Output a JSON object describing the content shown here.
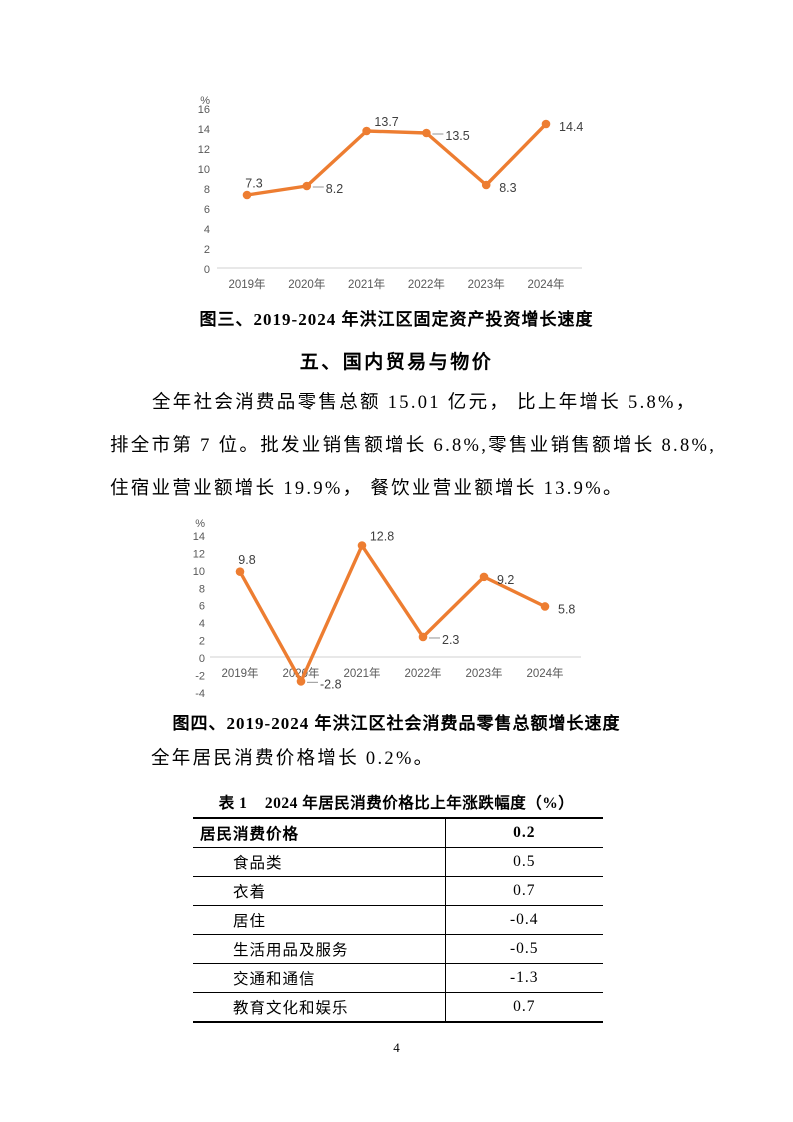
{
  "document": {
    "figure3_caption": "图三、2019-2024 年洪江区固定资产投资增长速度",
    "section_heading": "五、国内贸易与物价",
    "paragraph_lines": [
      "全年社会消费品零售总额 15.01 亿元， 比上年增长 5.8%，",
      "排全市第 7 位。批发业销售额增长 6.8%,零售业销售额增长 8.8%,",
      "住宿业营业额增长 19.9%， 餐饮业营业额增长 13.9%。"
    ],
    "figure4_caption": "图四、2019-2024 年洪江区社会消费品零售总额增长速度",
    "cpi_sentence": "全年居民消费价格增长 0.2%。",
    "page_number": "4"
  },
  "table1": {
    "title": "表 1    2024 年居民消费价格比上年涨跌幅度（%）",
    "header": {
      "label": "居民消费价格",
      "value": "0.2"
    },
    "rows": [
      {
        "label": "食品类",
        "value": "0.5"
      },
      {
        "label": "衣着",
        "value": "0.7"
      },
      {
        "label": "居住",
        "value": "-0.4"
      },
      {
        "label": "生活用品及服务",
        "value": "-0.5"
      },
      {
        "label": "交通和通信",
        "value": "-1.3"
      },
      {
        "label": "教育文化和娱乐",
        "value": "0.7"
      }
    ]
  },
  "chart_data": [
    {
      "type": "line",
      "title": "图三、2019-2024年洪江区固定资产投资增长速度",
      "categories": [
        "2019年",
        "2020年",
        "2021年",
        "2022年",
        "2023年",
        "2024年"
      ],
      "values": [
        7.3,
        8.2,
        13.7,
        13.5,
        8.3,
        14.4
      ],
      "data_labels": [
        "7.3",
        "8.2",
        "13.7",
        "13.5",
        "8.3",
        "14.4"
      ],
      "ylabel": "%",
      "xlabel": "",
      "ylim": [
        0,
        16
      ],
      "ystep": 2,
      "grid": false,
      "legend": "none",
      "series_color": "#ED7D31",
      "axis_color": "#D9D9D9",
      "leader_color": "#A6A6A6",
      "label_pos": [
        "above",
        "right-leader",
        "above-right",
        "right-leader",
        "right",
        "right"
      ]
    },
    {
      "type": "line",
      "title": "图四、2019-2024年洪江区社会消费品零售总额增长速度",
      "categories": [
        "2019年",
        "2020年",
        "2021年",
        "2022年",
        "2023年",
        "2024年"
      ],
      "values": [
        9.8,
        -2.8,
        12.8,
        2.3,
        9.2,
        5.8
      ],
      "data_labels": [
        "9.8",
        "-2.8",
        "12.8",
        "2.3",
        "9.2",
        "5.8"
      ],
      "ylabel": "%",
      "xlabel": "",
      "ylim": [
        -4,
        14
      ],
      "ystep": 2,
      "grid": false,
      "legend": "none",
      "series_color": "#ED7D31",
      "axis_color": "#D9D9D9",
      "leader_color": "#A6A6A6",
      "label_pos": [
        "above",
        "right-leader",
        "above-right",
        "right-leader",
        "right",
        "right"
      ]
    }
  ]
}
